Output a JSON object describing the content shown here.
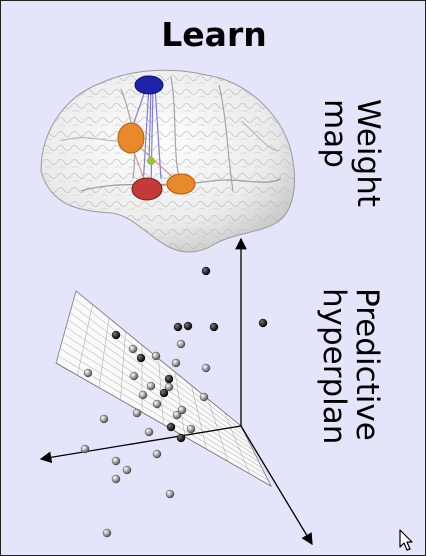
{
  "title": "Learn",
  "labels": {
    "weight_map": "Weight\nmap",
    "predictive_hyperplan": "Predictive\nhyperplan"
  },
  "icons": {
    "brain": "brain-icon",
    "cursor": "mouse-pointer-icon"
  },
  "colors": {
    "panel_background": "#e4e4fa",
    "region_blue": "#1d24a8",
    "region_orange": "#e88a2a",
    "region_red": "#c23a3a",
    "region_green": "#9ac23a"
  }
}
